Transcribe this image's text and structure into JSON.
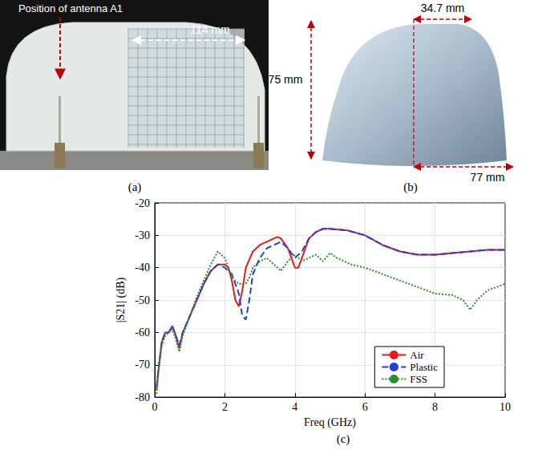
{
  "panels": {
    "a": {
      "label": "(a)",
      "texts": [
        "Position of antenna A1",
        "114 mm"
      ]
    },
    "b": {
      "label": "(b)",
      "texts": [
        "34.7 mm",
        "75 mm",
        "77 mm"
      ]
    },
    "c": {
      "label": "(c)"
    }
  },
  "chart_data": {
    "type": "line",
    "x_label": "Freq (GHz)",
    "y_label": "|S21| (dB)",
    "xlim": [
      0,
      10
    ],
    "xticks": [
      0,
      2,
      4,
      6,
      8,
      10
    ],
    "ylim": [
      -80,
      -20
    ],
    "yticks": [
      -80,
      -70,
      -60,
      -50,
      -40,
      -30,
      -20
    ],
    "grid": true,
    "legend": "lower right",
    "series": [
      {
        "name": "Air",
        "color": "#e41a1c",
        "line_style": "solid",
        "x": [
          0.05,
          0.1,
          0.2,
          0.3,
          0.4,
          0.5,
          0.6,
          0.7,
          0.8,
          1.0,
          1.2,
          1.4,
          1.6,
          1.8,
          2.0,
          2.1,
          2.2,
          2.3,
          2.4,
          2.5,
          2.6,
          2.8,
          3.0,
          3.2,
          3.4,
          3.5,
          3.6,
          3.8,
          4.0,
          4.1,
          4.2,
          4.4,
          4.6,
          4.8,
          5.0,
          5.5,
          6.0,
          6.5,
          7.0,
          7.5,
          8.0,
          8.5,
          9.0,
          9.5,
          10.0
        ],
        "values": [
          -78,
          -72,
          -63,
          -60,
          -60,
          -58,
          -61,
          -65,
          -60,
          -55,
          -50,
          -45,
          -41,
          -39,
          -39,
          -40,
          -44,
          -50,
          -52,
          -47,
          -40,
          -35,
          -33,
          -32,
          -31,
          -30.5,
          -31,
          -34,
          -40,
          -40,
          -37,
          -31,
          -29,
          -28,
          -28,
          -28.5,
          -30,
          -33,
          -35,
          -36,
          -36,
          -35.5,
          -35,
          -34.5,
          -34.5
        ]
      },
      {
        "name": "Plastic",
        "color": "#1f3fe0",
        "line_style": "dashed",
        "x": [
          0.05,
          0.1,
          0.2,
          0.3,
          0.4,
          0.5,
          0.6,
          0.7,
          0.8,
          1.0,
          1.2,
          1.4,
          1.6,
          1.8,
          2.0,
          2.2,
          2.4,
          2.5,
          2.6,
          2.7,
          2.8,
          3.0,
          3.2,
          3.4,
          3.6,
          3.8,
          4.0,
          4.2,
          4.4,
          4.6,
          4.8,
          5.0,
          5.5,
          6.0,
          6.5,
          7.0,
          7.5,
          8.0,
          8.5,
          9.0,
          9.5,
          10.0
        ],
        "values": [
          -77,
          -72,
          -63,
          -60,
          -60,
          -58,
          -61,
          -64,
          -60,
          -55,
          -50,
          -45,
          -41,
          -39,
          -40,
          -42,
          -48,
          -55,
          -56,
          -50,
          -42,
          -37,
          -34,
          -33,
          -32,
          -34,
          -37,
          -35,
          -31,
          -29,
          -28,
          -28,
          -28.5,
          -30,
          -33,
          -35,
          -36,
          -36,
          -35.5,
          -35,
          -34.5,
          -34.5
        ]
      },
      {
        "name": "FSS",
        "color": "#2e8b2e",
        "line_style": "dotted",
        "x": [
          0.05,
          0.1,
          0.2,
          0.3,
          0.4,
          0.5,
          0.6,
          0.7,
          0.8,
          1.0,
          1.2,
          1.4,
          1.6,
          1.8,
          2.0,
          2.2,
          2.4,
          2.6,
          2.7,
          2.8,
          3.0,
          3.2,
          3.4,
          3.6,
          3.8,
          4.0,
          4.2,
          4.4,
          4.6,
          4.8,
          5.0,
          5.2,
          5.4,
          5.6,
          5.8,
          6.0,
          6.5,
          7.0,
          7.5,
          8.0,
          8.5,
          8.8,
          9.0,
          9.2,
          9.5,
          10.0
        ],
        "values": [
          -79,
          -73,
          -64,
          -61,
          -60,
          -59,
          -62,
          -66,
          -61,
          -55,
          -49,
          -44,
          -39,
          -35,
          -37,
          -43,
          -45,
          -45,
          -43,
          -40,
          -38,
          -37,
          -39,
          -41,
          -38,
          -36,
          -38,
          -37,
          -36,
          -38,
          -35.5,
          -37,
          -38,
          -39,
          -39.5,
          -40,
          -42,
          -44,
          -46,
          -48,
          -48.5,
          -50,
          -53,
          -50,
          -47,
          -45
        ]
      }
    ]
  }
}
